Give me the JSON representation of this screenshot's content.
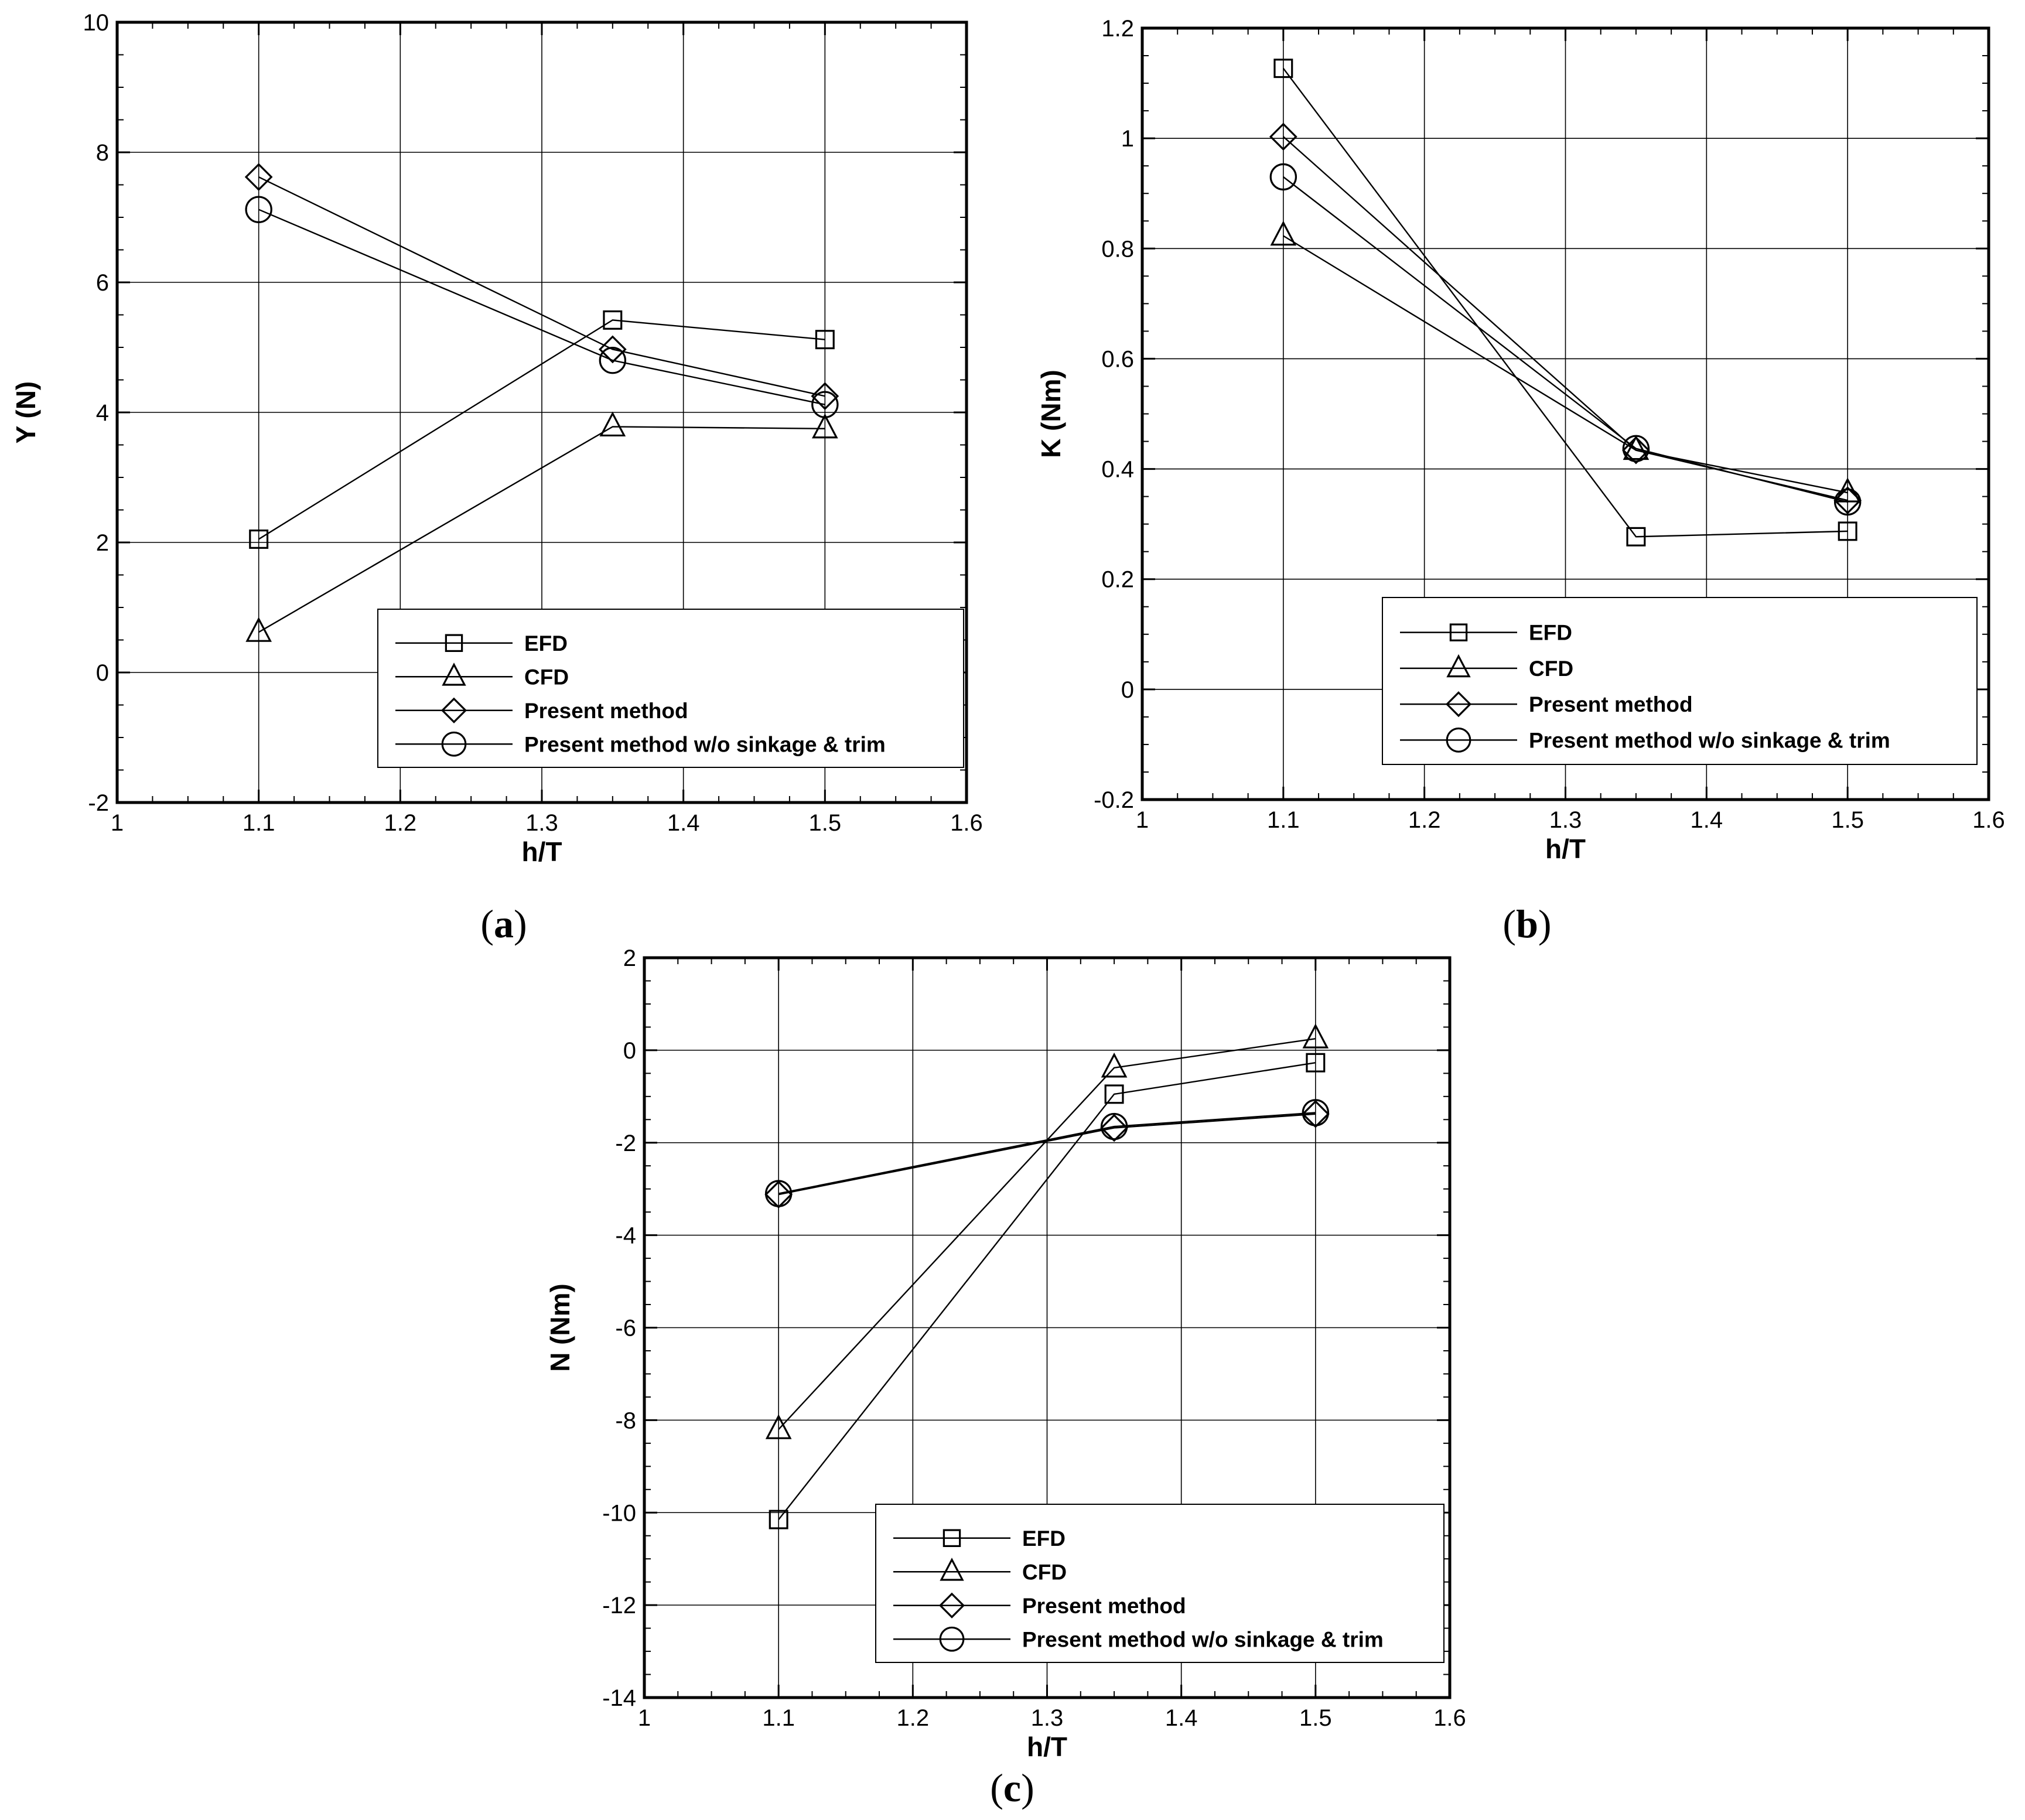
{
  "chart_data": [
    {
      "type": "line",
      "panel": "a",
      "xlabel": "h/T",
      "ylabel": "Y (N)",
      "xlim": [
        1,
        1.6
      ],
      "ylim": [
        -2,
        10
      ],
      "x_ticks": [
        "1",
        "1.1",
        "1.2",
        "1.3",
        "1.4",
        "1.5",
        "1.6"
      ],
      "y_ticks": [
        "-2",
        "0",
        "2",
        "4",
        "6",
        "8",
        "10"
      ],
      "grid": true,
      "legend_position": "bottom-right",
      "x": [
        1.1,
        1.35,
        1.5
      ],
      "series": [
        {
          "name": "EFD",
          "marker": "square",
          "values": [
            2.05,
            5.42,
            5.12
          ]
        },
        {
          "name": "CFD",
          "marker": "triangle",
          "values": [
            0.62,
            3.78,
            3.75
          ]
        },
        {
          "name": "Present method",
          "marker": "diamond",
          "values": [
            7.62,
            4.97,
            4.25
          ]
        },
        {
          "name": "Present method w/o sinkage & trim",
          "marker": "circle",
          "values": [
            7.12,
            4.8,
            4.12
          ]
        }
      ]
    },
    {
      "type": "line",
      "panel": "b",
      "xlabel": "h/T",
      "ylabel": "K (Nm)",
      "xlim": [
        1,
        1.6
      ],
      "ylim": [
        -0.2,
        1.2
      ],
      "x_ticks": [
        "1",
        "1.1",
        "1.2",
        "1.3",
        "1.4",
        "1.5",
        "1.6"
      ],
      "y_ticks": [
        "-0.2",
        "0",
        "0.2",
        "0.4",
        "0.6",
        "0.8",
        "1",
        "1.2"
      ],
      "grid": true,
      "legend_position": "bottom-right",
      "x": [
        1.1,
        1.35,
        1.5
      ],
      "series": [
        {
          "name": "EFD",
          "marker": "square",
          "values": [
            1.127,
            0.277,
            0.287
          ]
        },
        {
          "name": "CFD",
          "marker": "triangle",
          "values": [
            0.823,
            0.434,
            0.357
          ]
        },
        {
          "name": "Present method",
          "marker": "diamond",
          "values": [
            1.003,
            0.434,
            0.343
          ]
        },
        {
          "name": "Present method w/o sinkage & trim",
          "marker": "circle",
          "values": [
            0.93,
            0.437,
            0.34
          ]
        }
      ]
    },
    {
      "type": "line",
      "panel": "c",
      "xlabel": "h/T",
      "ylabel": "N (Nm)",
      "xlim": [
        1,
        1.6
      ],
      "ylim": [
        -14,
        2
      ],
      "x_ticks": [
        "1",
        "1.1",
        "1.2",
        "1.3",
        "1.4",
        "1.5",
        "1.6"
      ],
      "y_ticks": [
        "-14",
        "-12",
        "-10",
        "-8",
        "-6",
        "-4",
        "-2",
        "0",
        "2"
      ],
      "grid": true,
      "legend_position": "bottom-right",
      "x": [
        1.1,
        1.35,
        1.5
      ],
      "series": [
        {
          "name": "EFD",
          "marker": "square",
          "values": [
            -10.15,
            -0.95,
            -0.27
          ]
        },
        {
          "name": "CFD",
          "marker": "triangle",
          "values": [
            -8.2,
            -0.38,
            0.25
          ]
        },
        {
          "name": "Present method",
          "marker": "diamond",
          "values": [
            -3.12,
            -1.68,
            -1.38
          ]
        },
        {
          "name": "Present method w/o sinkage & trim",
          "marker": "circle",
          "values": [
            -3.1,
            -1.65,
            -1.35
          ]
        }
      ]
    }
  ],
  "captions": [
    {
      "open": "(",
      "letter": "a",
      "close": ")"
    },
    {
      "open": "(",
      "letter": "b",
      "close": ")"
    },
    {
      "open": "(",
      "letter": "c",
      "close": ")"
    }
  ],
  "colors": {
    "line": "#000000",
    "grid": "#000000",
    "background": "#ffffff"
  }
}
